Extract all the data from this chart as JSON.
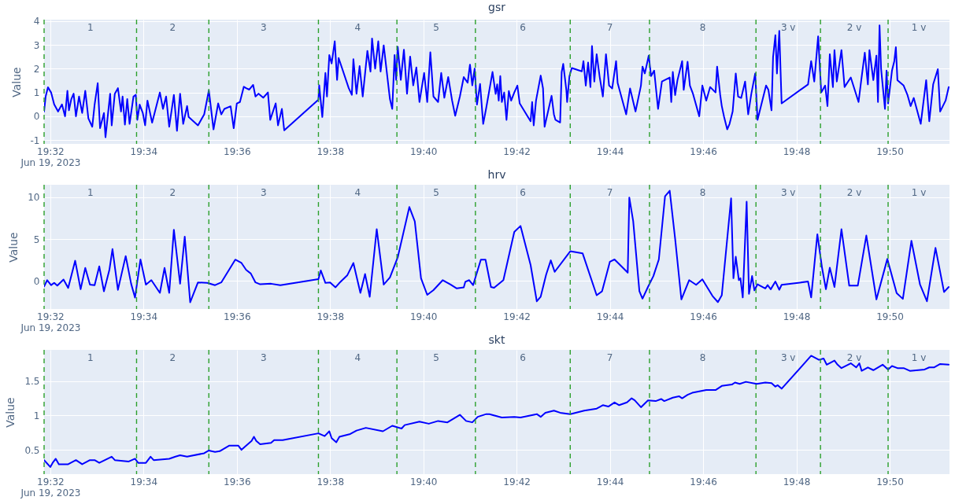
{
  "chart_data": [
    {
      "type": "line",
      "title": "gsr",
      "ylabel": "Value",
      "color": "#0000ff",
      "grid": true,
      "xlim": [
        "2023-06-19T19:31:52",
        "2023-06-19T19:51:17"
      ],
      "ylim": [
        -1.16,
        4.06
      ],
      "yticks": [
        -1,
        0,
        1,
        2,
        3,
        4
      ],
      "xticks": [
        {
          "value": "2023-06-19T19:32",
          "label": "19:32\nJun 19, 2023"
        },
        {
          "value": "2023-06-19T19:34",
          "label": "19:34"
        },
        {
          "value": "2023-06-19T19:36",
          "label": "19:36"
        },
        {
          "value": "2023-06-19T19:38",
          "label": "19:38"
        },
        {
          "value": "2023-06-19T19:40",
          "label": "19:40"
        },
        {
          "value": "2023-06-19T19:42",
          "label": "19:42"
        },
        {
          "value": "2023-06-19T19:44",
          "label": "19:44"
        },
        {
          "value": "2023-06-19T19:46",
          "label": "19:46"
        },
        {
          "value": "2023-06-19T19:48",
          "label": "19:48"
        },
        {
          "value": "2023-06-19T19:50",
          "label": "19:50"
        }
      ],
      "x": [
        "2023-06-19T19:31:52",
        "2023-06-19T19:31:54",
        "2023-06-19T19:31:57",
        "2023-06-19T19:32:01",
        "2023-06-19T19:32:05",
        "2023-06-19T19:32:10",
        "2023-06-19T19:32:15",
        "2023-06-19T19:32:19",
        "2023-06-19T19:32:22",
        "2023-06-19T19:32:24",
        "2023-06-19T19:32:27",
        "2023-06-19T19:32:30",
        "2023-06-19T19:32:33",
        "2023-06-19T19:32:37",
        "2023-06-19T19:32:41",
        "2023-06-19T19:32:45",
        "2023-06-19T19:32:49",
        "2023-06-19T19:32:54",
        "2023-06-19T19:32:57",
        "2023-06-19T19:33:01",
        "2023-06-19T19:33:04",
        "2023-06-19T19:33:09",
        "2023-06-19T19:33:11",
        "2023-06-19T19:33:17",
        "2023-06-19T19:33:19",
        "2023-06-19T19:33:23",
        "2023-06-19T19:33:27",
        "2023-06-19T19:33:31",
        "2023-06-19T19:33:33",
        "2023-06-19T19:33:36",
        "2023-06-19T19:33:39",
        "2023-06-19T19:33:42",
        "2023-06-19T19:33:47",
        "2023-06-19T19:33:50",
        "2023-06-19T19:33:52",
        "2023-06-19T19:33:55",
        "2023-06-19T19:33:59",
        "2023-06-19T19:34:02",
        "2023-06-19T19:34:05",
        "2023-06-19T19:34:11",
        "2023-06-19T19:34:21",
        "2023-06-19T19:34:25",
        "2023-06-19T19:34:29",
        "2023-06-19T19:34:33",
        "2023-06-19T19:34:39",
        "2023-06-19T19:34:43",
        "2023-06-19T19:34:47",
        "2023-06-19T19:34:51",
        "2023-06-19T19:34:56",
        "2023-06-19T19:34:58",
        "2023-06-19T19:35:10",
        "2023-06-19T19:35:18",
        "2023-06-19T19:35:24",
        "2023-06-19T19:35:30",
        "2023-06-19T19:35:36",
        "2023-06-19T19:35:40",
        "2023-06-19T19:35:44",
        "2023-06-19T19:35:52",
        "2023-06-19T19:35:56",
        "2023-06-19T19:36:00",
        "2023-06-19T19:36:04",
        "2023-06-19T19:36:09",
        "2023-06-19T19:36:12",
        "2023-06-19T19:36:16",
        "2023-06-19T19:36:21",
        "2023-06-19T19:36:24",
        "2023-06-19T19:36:28",
        "2023-06-19T19:36:34",
        "2023-06-19T19:36:40",
        "2023-06-19T19:36:43",
        "2023-06-19T19:36:50",
        "2023-06-19T19:36:53",
        "2023-06-19T19:36:58",
        "2023-06-19T19:37:01",
        "2023-06-19T19:37:45",
        "2023-06-19T19:37:46",
        "2023-06-19T19:37:50",
        "2023-06-19T19:37:54",
        "2023-06-19T19:37:56",
        "2023-06-19T19:37:59",
        "2023-06-19T19:38:02",
        "2023-06-19T19:38:06",
        "2023-06-19T19:38:09",
        "2023-06-19T19:38:11",
        "2023-06-19T19:38:24",
        "2023-06-19T19:38:28",
        "2023-06-19T19:38:30",
        "2023-06-19T19:38:34",
        "2023-06-19T19:38:38",
        "2023-06-19T19:38:42",
        "2023-06-19T19:38:48",
        "2023-06-19T19:38:52",
        "2023-06-19T19:38:54",
        "2023-06-19T19:38:58",
        "2023-06-19T19:39:02",
        "2023-06-19T19:39:05",
        "2023-06-19T19:39:09",
        "2023-06-19T19:39:17",
        "2023-06-19T19:39:20",
        "2023-06-19T19:39:23",
        "2023-06-19T19:39:25",
        "2023-06-19T19:39:27",
        "2023-06-19T19:39:31",
        "2023-06-19T19:39:35",
        "2023-06-19T19:39:39",
        "2023-06-19T19:39:43",
        "2023-06-19T19:39:47",
        "2023-06-19T19:39:51",
        "2023-06-19T19:39:55",
        "2023-06-19T19:40:01",
        "2023-06-19T19:40:05",
        "2023-06-19T19:40:09",
        "2023-06-19T19:40:13",
        "2023-06-19T19:40:19",
        "2023-06-19T19:40:23",
        "2023-06-19T19:40:27",
        "2023-06-19T19:40:32",
        "2023-06-19T19:40:37",
        "2023-06-19T19:40:41",
        "2023-06-19T19:40:47",
        "2023-06-19T19:40:52",
        "2023-06-19T19:40:57",
        "2023-06-19T19:41:00",
        "2023-06-19T19:41:03",
        "2023-06-19T19:41:06",
        "2023-06-19T19:41:09",
        "2023-06-19T19:41:13",
        "2023-06-19T19:41:17",
        "2023-06-19T19:41:21",
        "2023-06-19T19:41:29",
        "2023-06-19T19:41:33",
        "2023-06-19T19:41:35",
        "2023-06-19T19:41:37",
        "2023-06-19T19:41:39",
        "2023-06-19T19:41:41",
        "2023-06-19T19:41:44",
        "2023-06-19T19:41:47",
        "2023-06-19T19:41:50",
        "2023-06-19T19:41:53",
        "2023-06-19T19:41:57",
        "2023-06-19T19:42:01",
        "2023-06-19T19:42:04",
        "2023-06-19T19:42:18",
        "2023-06-19T19:42:20",
        "2023-06-19T19:42:22",
        "2023-06-19T19:42:25",
        "2023-06-19T19:42:31",
        "2023-06-19T19:42:34",
        "2023-06-19T19:42:36",
        "2023-06-19T19:42:45",
        "2023-06-19T19:42:48",
        "2023-06-19T19:42:50",
        "2023-06-19T19:42:56",
        "2023-06-19T19:42:58",
        "2023-06-19T19:43:00",
        "2023-06-19T19:43:04",
        "2023-06-19T19:43:05",
        "2023-06-19T19:43:08",
        "2023-06-19T19:43:11",
        "2023-06-19T19:43:24",
        "2023-06-19T19:43:26",
        "2023-06-19T19:43:29",
        "2023-06-19T19:43:32",
        "2023-06-19T19:43:35",
        "2023-06-19T19:43:37",
        "2023-06-19T19:43:40",
        "2023-06-19T19:43:43",
        "2023-06-19T19:43:47",
        "2023-06-19T19:43:51",
        "2023-06-19T19:43:55",
        "2023-06-19T19:43:59",
        "2023-06-19T19:44:03",
        "2023-06-19T19:44:08",
        "2023-06-19T19:44:10",
        "2023-06-19T19:44:21",
        "2023-06-19T19:44:26",
        "2023-06-19T19:44:33",
        "2023-06-19T19:44:40",
        "2023-06-19T19:44:42",
        "2023-06-19T19:44:45",
        "2023-06-19T19:44:50",
        "2023-06-19T19:44:53",
        "2023-06-19T19:44:57",
        "2023-06-19T19:45:02",
        "2023-06-19T19:45:07",
        "2023-06-19T19:45:17",
        "2023-06-19T19:45:19",
        "2023-06-19T19:45:21",
        "2023-06-19T19:45:24",
        "2023-06-19T19:45:27",
        "2023-06-19T19:45:33",
        "2023-06-19T19:45:35",
        "2023-06-19T19:45:40",
        "2023-06-19T19:45:43",
        "2023-06-19T19:45:47",
        "2023-06-19T19:45:55",
        "2023-06-19T19:45:59",
        "2023-06-19T19:46:04",
        "2023-06-19T19:46:09",
        "2023-06-19T19:46:16",
        "2023-06-19T19:46:18",
        "2023-06-19T19:46:22",
        "2023-06-19T19:46:24",
        "2023-06-19T19:46:27",
        "2023-06-19T19:46:31",
        "2023-06-19T19:46:34",
        "2023-06-19T19:46:38",
        "2023-06-19T19:46:42",
        "2023-06-19T19:46:45",
        "2023-06-19T19:46:49",
        "2023-06-19T19:46:54",
        "2023-06-19T19:46:58",
        "2023-06-19T19:47:02",
        "2023-06-19T19:47:07",
        "2023-06-19T19:47:10",
        "2023-06-19T19:47:21",
        "2023-06-19T19:47:24",
        "2023-06-19T19:47:28",
        "2023-06-19T19:47:30",
        "2023-06-19T19:47:33",
        "2023-06-19T19:47:35",
        "2023-06-19T19:47:38",
        "2023-06-19T19:47:41",
        "2023-06-19T19:48:15",
        "2023-06-19T19:48:19",
        "2023-06-19T19:48:23",
        "2023-06-19T19:48:28",
        "2023-06-19T19:48:32",
        "2023-06-19T19:48:37",
        "2023-06-19T19:48:40",
        "2023-06-19T19:48:43",
        "2023-06-19T19:48:47",
        "2023-06-19T19:48:49",
        "2023-06-19T19:48:52",
        "2023-06-19T19:48:58",
        "2023-06-19T19:49:02",
        "2023-06-19T19:49:10",
        "2023-06-19T19:49:20",
        "2023-06-19T19:49:23",
        "2023-06-19T19:49:28",
        "2023-06-19T19:49:32",
        "2023-06-19T19:49:34",
        "2023-06-19T19:49:39",
        "2023-06-19T19:49:43",
        "2023-06-19T19:49:45",
        "2023-06-19T19:49:47",
        "2023-06-19T19:49:49",
        "2023-06-19T19:49:54",
        "2023-06-19T19:49:56",
        "2023-06-19T19:49:58",
        "2023-06-19T19:50:03",
        "2023-06-19T19:50:06",
        "2023-06-19T19:50:08",
        "2023-06-19T19:50:10",
        "2023-06-19T19:50:18",
        "2023-06-19T19:50:23",
        "2023-06-19T19:50:27",
        "2023-06-19T19:50:31",
        "2023-06-19T19:50:40",
        "2023-06-19T19:50:47",
        "2023-06-19T19:50:51",
        "2023-06-19T19:50:56",
        "2023-06-19T19:51:02",
        "2023-06-19T19:51:05",
        "2023-06-19T19:51:12",
        "2023-06-19T19:51:16"
      ],
      "values": [
        0.2,
        0.83,
        1.22,
        1.0,
        0.5,
        0.2,
        0.5,
        0.0,
        1.07,
        0.25,
        0.72,
        0.95,
        0.0,
        0.83,
        0.14,
        1.07,
        -0.09,
        -0.44,
        0.49,
        1.39,
        -0.5,
        0.14,
        -0.88,
        0.95,
        -0.38,
        0.95,
        1.18,
        0.2,
        0.83,
        -0.35,
        0.72,
        -0.32,
        0.83,
        0.9,
        -0.15,
        0.49,
        0.14,
        -0.38,
        0.66,
        -0.27,
        1.0,
        0.31,
        0.83,
        -0.44,
        0.9,
        -0.61,
        0.95,
        -0.32,
        0.43,
        -0.03,
        -0.38,
        0.08,
        1.09,
        -0.55,
        0.54,
        0.08,
        0.31,
        0.42,
        -0.5,
        0.54,
        0.6,
        1.24,
        1.18,
        1.12,
        1.32,
        0.83,
        0.95,
        0.78,
        1.0,
        -0.15,
        0.54,
        -0.38,
        0.31,
        -0.59,
        0.7,
        1.3,
        -0.03,
        1.82,
        0.83,
        2.57,
        2.22,
        3.15,
        1.53,
        2.45,
        1.18,
        0.9,
        2.4,
        0.95,
        2.11,
        0.83,
        2.75,
        1.88,
        3.27,
        2.0,
        3.15,
        1.88,
        2.98,
        0.72,
        0.31,
        2.57,
        1.53,
        2.92,
        1.53,
        2.8,
        0.95,
        2.51,
        1.3,
        2.05,
        0.6,
        1.82,
        0.6,
        2.69,
        0.83,
        0.6,
        1.82,
        0.78,
        1.65,
        0.66,
        0.02,
        0.83,
        1.65,
        1.41,
        2.17,
        1.3,
        2.0,
        0.49,
        1.36,
        -0.32,
        0.37,
        1.86,
        0.94,
        1.34,
        0.66,
        1.69,
        0.6,
        1.0,
        -0.15,
        1.06,
        0.66,
        1.0,
        1.29,
        0.54,
        -0.21,
        0.6,
        -0.38,
        0.66,
        1.71,
        1.17,
        -0.44,
        0.86,
        0.08,
        -0.15,
        -0.26,
        1.86,
        2.2,
        1.11,
        0.6,
        1.69,
        2.03,
        1.89,
        2.32,
        1.29,
        2.26,
        1.23,
        2.95,
        1.46,
        2.61,
        1.63,
        0.83,
        2.61,
        1.29,
        1.17,
        2.32,
        1.4,
        0.08,
        1.17,
        0.2,
        1.29,
        2.09,
        1.8,
        2.55,
        1.69,
        1.92,
        0.31,
        1.46,
        1.63,
        0.6,
        1.86,
        0.89,
        1.52,
        2.32,
        1.11,
        2.29,
        1.29,
        0.94,
        0.0,
        1.29,
        0.66,
        1.23,
        1.0,
        2.09,
        0.89,
        0.43,
        -0.03,
        -0.55,
        -0.32,
        0.2,
        1.8,
        0.83,
        0.77,
        1.46,
        0.08,
        0.94,
        1.8,
        -0.15,
        1.29,
        1.11,
        0.25,
        2.49,
        3.41,
        1.8,
        3.59,
        0.54,
        1.34,
        2.32,
        1.46,
        3.36,
        1.0,
        1.29,
        0.43,
        2.61,
        1.23,
        2.78,
        1.46,
        2.78,
        1.23,
        1.63,
        0.6,
        1.4,
        2.67,
        1.34,
        2.78,
        1.52,
        2.55,
        0.6,
        3.82,
        1.98,
        0.31,
        1.92,
        0.54,
        1.92,
        2.32,
        2.9,
        1.52,
        1.29,
        0.89,
        0.43,
        0.77,
        -0.32,
        1.52,
        -0.21,
        1.34,
        1.98,
        0.2,
        0.66,
        1.23
      ],
      "ref_lines": [
        {
          "axis": "x",
          "value": "2023-06-19T19:31:52",
          "color": "#2ca02c",
          "line_style": "dashed"
        },
        {
          "axis": "x",
          "value": "2023-06-19T19:33:51",
          "color": "#2ca02c",
          "line_style": "dashed"
        },
        {
          "axis": "x",
          "value": "2023-06-19T19:35:24",
          "color": "#2ca02c",
          "line_style": "dashed"
        },
        {
          "axis": "x",
          "value": "2023-06-19T19:37:45",
          "color": "#2ca02c",
          "line_style": "dashed"
        },
        {
          "axis": "x",
          "value": "2023-06-19T19:39:26",
          "color": "#2ca02c",
          "line_style": "dashed"
        },
        {
          "axis": "x",
          "value": "2023-06-19T19:41:07",
          "color": "#2ca02c",
          "line_style": "dashed"
        },
        {
          "axis": "x",
          "value": "2023-06-19T19:43:09",
          "color": "#2ca02c",
          "line_style": "dashed"
        },
        {
          "axis": "x",
          "value": "2023-06-19T19:44:51",
          "color": "#2ca02c",
          "line_style": "dashed"
        },
        {
          "axis": "x",
          "value": "2023-06-19T19:47:08",
          "color": "#2ca02c",
          "line_style": "dashed"
        },
        {
          "axis": "x",
          "value": "2023-06-19T19:48:31",
          "color": "#2ca02c",
          "line_style": "dashed"
        },
        {
          "axis": "x",
          "value": "2023-06-19T19:49:58",
          "color": "#2ca02c",
          "line_style": "dashed"
        }
      ],
      "annotations": [
        "1",
        "2",
        "3",
        "4",
        "5",
        "6",
        "7",
        "8",
        "3 v",
        "2 v",
        "1 v"
      ]
    },
    {
      "type": "line",
      "title": "hrv",
      "ylabel": "Value",
      "color": "#0000ff",
      "grid": true,
      "xlim": [
        "2023-06-19T19:31:52",
        "2023-06-19T19:51:17"
      ],
      "ylim": [
        -3.35,
        11.5
      ],
      "yticks": [
        0,
        5,
        10
      ],
      "xticks": [
        {
          "value": "2023-06-19T19:32",
          "label": "19:32\nJun 19, 2023"
        },
        {
          "value": "2023-06-19T19:34",
          "label": "19:34"
        },
        {
          "value": "2023-06-19T19:36",
          "label": "19:36"
        },
        {
          "value": "2023-06-19T19:38",
          "label": "19:38"
        },
        {
          "value": "2023-06-19T19:40",
          "label": "19:40"
        },
        {
          "value": "2023-06-19T19:42",
          "label": "19:42"
        },
        {
          "value": "2023-06-19T19:44",
          "label": "19:44"
        },
        {
          "value": "2023-06-19T19:46",
          "label": "19:46"
        },
        {
          "value": "2023-06-19T19:48",
          "label": "19:48"
        },
        {
          "value": "2023-06-19T19:50",
          "label": "19:50"
        }
      ],
      "x": [
        "2023-06-19T19:31:52",
        "2023-06-19T19:31:56",
        "2023-06-19T19:32:01",
        "2023-06-19T19:32:05",
        "2023-06-19T19:32:09",
        "2023-06-19T19:32:17",
        "2023-06-19T19:32:23",
        "2023-06-19T19:32:32",
        "2023-06-19T19:32:39",
        "2023-06-19T19:32:45",
        "2023-06-19T19:32:51",
        "2023-06-19T19:32:57",
        "2023-06-19T19:33:03",
        "2023-06-19T19:33:09",
        "2023-06-19T19:33:16",
        "2023-06-19T19:33:20",
        "2023-06-19T19:33:27",
        "2023-06-19T19:33:37",
        "2023-06-19T19:33:44",
        "2023-06-19T19:33:49",
        "2023-06-19T19:33:56",
        "2023-06-19T19:34:03",
        "2023-06-19T19:34:10",
        "2023-06-19T19:34:21",
        "2023-06-19T19:34:27",
        "2023-06-19T19:34:33",
        "2023-06-19T19:34:39",
        "2023-06-19T19:34:47",
        "2023-06-19T19:34:53",
        "2023-06-19T19:35:00",
        "2023-06-19T19:35:10",
        "2023-06-19T19:35:22",
        "2023-06-19T19:35:32",
        "2023-06-19T19:35:40",
        "2023-06-19T19:35:58",
        "2023-06-19T19:36:06",
        "2023-06-19T19:36:12",
        "2023-06-19T19:36:18",
        "2023-06-19T19:36:24",
        "2023-06-19T19:36:30",
        "2023-06-19T19:36:44",
        "2023-06-19T19:36:56",
        "2023-06-19T19:37:45",
        "2023-06-19T19:37:48",
        "2023-06-19T19:37:54",
        "2023-06-19T19:38:00",
        "2023-06-19T19:38:07",
        "2023-06-19T19:38:12",
        "2023-06-19T19:38:22",
        "2023-06-19T19:38:30",
        "2023-06-19T19:38:39",
        "2023-06-19T19:38:45",
        "2023-06-19T19:38:51",
        "2023-06-19T19:39:00",
        "2023-06-19T19:39:09",
        "2023-06-19T19:39:17",
        "2023-06-19T19:39:27",
        "2023-06-19T19:39:42",
        "2023-06-19T19:39:49",
        "2023-06-19T19:39:57",
        "2023-06-19T19:40:05",
        "2023-06-19T19:40:13",
        "2023-06-19T19:40:25",
        "2023-06-19T19:40:35",
        "2023-06-19T19:40:43",
        "2023-06-19T19:40:52",
        "2023-06-19T19:40:54",
        "2023-06-19T19:40:59",
        "2023-06-19T19:41:04",
        "2023-06-19T19:41:14",
        "2023-06-19T19:41:20",
        "2023-06-19T19:41:27",
        "2023-06-19T19:41:31",
        "2023-06-19T19:41:43",
        "2023-06-19T19:41:57",
        "2023-06-19T19:42:05",
        "2023-06-19T19:42:18",
        "2023-06-19T19:42:26",
        "2023-06-19T19:42:31",
        "2023-06-19T19:42:38",
        "2023-06-19T19:42:44",
        "2023-06-19T19:42:49",
        "2023-06-19T19:43:09",
        "2023-06-19T19:43:25",
        "2023-06-19T19:43:43",
        "2023-06-19T19:43:50",
        "2023-06-19T19:44:00",
        "2023-06-19T19:44:06",
        "2023-06-19T19:44:23",
        "2023-06-19T19:44:25",
        "2023-06-19T19:44:30",
        "2023-06-19T19:44:38",
        "2023-06-19T19:44:42",
        "2023-06-19T19:44:49",
        "2023-06-19T19:44:56",
        "2023-06-19T19:45:03",
        "2023-06-19T19:45:11",
        "2023-06-19T19:45:17",
        "2023-06-19T19:45:24",
        "2023-06-19T19:45:32",
        "2023-06-19T19:45:42",
        "2023-06-19T19:45:51",
        "2023-06-19T19:45:59",
        "2023-06-19T19:46:12",
        "2023-06-19T19:46:19",
        "2023-06-19T19:46:24",
        "2023-06-19T19:46:36",
        "2023-06-19T19:46:39",
        "2023-06-19T19:46:42",
        "2023-06-19T19:46:46",
        "2023-06-19T19:46:48",
        "2023-06-19T19:46:51",
        "2023-06-19T19:46:56",
        "2023-06-19T19:46:59",
        "2023-06-19T19:47:03",
        "2023-06-19T19:47:06",
        "2023-06-19T19:47:10",
        "2023-06-19T19:47:20",
        "2023-06-19T19:47:23",
        "2023-06-19T19:47:27",
        "2023-06-19T19:47:33",
        "2023-06-19T19:47:38",
        "2023-06-19T19:47:41",
        "2023-06-19T19:48:15",
        "2023-06-19T19:48:19",
        "2023-06-19T19:48:27",
        "2023-06-19T19:48:33",
        "2023-06-19T19:48:38",
        "2023-06-19T19:48:43",
        "2023-06-19T19:48:49",
        "2023-06-19T19:48:58",
        "2023-06-19T19:49:08",
        "2023-06-19T19:49:19",
        "2023-06-19T19:49:30",
        "2023-06-19T19:49:43",
        "2023-06-19T19:49:57",
        "2023-06-19T19:50:09",
        "2023-06-19T19:50:17",
        "2023-06-19T19:50:28",
        "2023-06-19T19:50:39",
        "2023-06-19T19:50:48",
        "2023-06-19T19:50:59",
        "2023-06-19T19:51:10",
        "2023-06-19T19:51:16"
      ],
      "values": [
        -0.66,
        0.1,
        -0.5,
        -0.23,
        -0.56,
        0.17,
        -0.83,
        2.42,
        -0.99,
        1.56,
        -0.43,
        -0.5,
        1.75,
        -1.23,
        1.32,
        3.81,
        -1.06,
        2.98,
        -0.33,
        -1.99,
        2.58,
        -0.43,
        0.1,
        -1.42,
        1.56,
        -1.42,
        6.13,
        -0.33,
        5.3,
        -2.55,
        -0.17,
        -0.23,
        -0.5,
        -0.17,
        2.55,
        2.15,
        1.32,
        0.89,
        -0.17,
        -0.4,
        -0.33,
        -0.5,
        0.23,
        1.26,
        -0.23,
        -0.17,
        -0.76,
        -0.23,
        0.66,
        2.15,
        -1.42,
        0.83,
        -1.89,
        6.19,
        -0.43,
        0.43,
        2.81,
        8.84,
        7.12,
        0.33,
        -1.66,
        -1.09,
        0.1,
        -0.43,
        -0.89,
        -0.76,
        -0.1,
        0.1,
        -0.5,
        2.55,
        2.55,
        -0.72,
        -0.82,
        0.1,
        5.86,
        6.58,
        1.91,
        -2.43,
        -1.88,
        0.76,
        2.47,
        1.09,
        3.55,
        3.29,
        -1.71,
        -1.22,
        2.3,
        2.57,
        0.99,
        9.97,
        7.17,
        -1.22,
        -2.11,
        -0.72,
        0.59,
        2.57,
        10.13,
        10.79,
        5.03,
        -2.2,
        0.1,
        -0.46,
        0.2,
        -1.78,
        -2.53,
        -1.71,
        9.87,
        0.33,
        2.89,
        0.1,
        0.33,
        -1.97,
        9.47,
        -1.55,
        0.59,
        -1.12,
        -0.39,
        -0.89,
        -0.49,
        -0.99,
        -0.07,
        -1.05,
        -0.46,
        -0.07,
        -1.97,
        5.59,
        1.58,
        -0.99,
        1.58,
        -0.72,
        6.18,
        -0.56,
        -0.56,
        5.43,
        -2.2,
        2.63,
        -1.45,
        -2.14,
        4.8,
        -0.39,
        -2.43,
        3.95,
        -1.32,
        -0.72
      ],
      "ref_lines": [
        {
          "axis": "x",
          "value": "2023-06-19T19:31:52",
          "color": "#2ca02c",
          "line_style": "dashed"
        },
        {
          "axis": "x",
          "value": "2023-06-19T19:33:51",
          "color": "#2ca02c",
          "line_style": "dashed"
        },
        {
          "axis": "x",
          "value": "2023-06-19T19:35:24",
          "color": "#2ca02c",
          "line_style": "dashed"
        },
        {
          "axis": "x",
          "value": "2023-06-19T19:37:45",
          "color": "#2ca02c",
          "line_style": "dashed"
        },
        {
          "axis": "x",
          "value": "2023-06-19T19:39:26",
          "color": "#2ca02c",
          "line_style": "dashed"
        },
        {
          "axis": "x",
          "value": "2023-06-19T19:41:07",
          "color": "#2ca02c",
          "line_style": "dashed"
        },
        {
          "axis": "x",
          "value": "2023-06-19T19:43:09",
          "color": "#2ca02c",
          "line_style": "dashed"
        },
        {
          "axis": "x",
          "value": "2023-06-19T19:44:51",
          "color": "#2ca02c",
          "line_style": "dashed"
        },
        {
          "axis": "x",
          "value": "2023-06-19T19:47:08",
          "color": "#2ca02c",
          "line_style": "dashed"
        },
        {
          "axis": "x",
          "value": "2023-06-19T19:48:31",
          "color": "#2ca02c",
          "line_style": "dashed"
        },
        {
          "axis": "x",
          "value": "2023-06-19T19:49:58",
          "color": "#2ca02c",
          "line_style": "dashed"
        }
      ],
      "annotations": [
        "1",
        "2",
        "3",
        "4",
        "5",
        "6",
        "7",
        "8",
        "3 v",
        "2 v",
        "1 v"
      ]
    },
    {
      "type": "line",
      "title": "skt",
      "ylabel": "Value",
      "color": "#0000ff",
      "grid": true,
      "xlim": [
        "2023-06-19T19:31:52",
        "2023-06-19T19:51:17"
      ],
      "ylim": [
        0.146,
        1.955
      ],
      "yticks": [
        0.5,
        1,
        1.5
      ],
      "xticks": [
        {
          "value": "2023-06-19T19:32",
          "label": "19:32\nJun 19, 2023"
        },
        {
          "value": "2023-06-19T19:34",
          "label": "19:34"
        },
        {
          "value": "2023-06-19T19:36",
          "label": "19:36"
        },
        {
          "value": "2023-06-19T19:38",
          "label": "19:38"
        },
        {
          "value": "2023-06-19T19:40",
          "label": "19:40"
        },
        {
          "value": "2023-06-19T19:42",
          "label": "19:42"
        },
        {
          "value": "2023-06-19T19:44",
          "label": "19:44"
        },
        {
          "value": "2023-06-19T19:46",
          "label": "19:46"
        },
        {
          "value": "2023-06-19T19:48",
          "label": "19:48"
        },
        {
          "value": "2023-06-19T19:50",
          "label": "19:50"
        }
      ],
      "x": [
        "2023-06-19T19:31:52",
        "2023-06-19T19:32:00",
        "2023-06-19T19:32:03",
        "2023-06-19T19:32:07",
        "2023-06-19T19:32:11",
        "2023-06-19T19:32:23",
        "2023-06-19T19:32:33",
        "2023-06-19T19:32:41",
        "2023-06-19T19:32:51",
        "2023-06-19T19:32:57",
        "2023-06-19T19:33:03",
        "2023-06-19T19:33:19",
        "2023-06-19T19:33:23",
        "2023-06-19T19:33:41",
        "2023-06-19T19:33:49",
        "2023-06-19T19:33:53",
        "2023-06-19T19:34:03",
        "2023-06-19T19:34:09",
        "2023-06-19T19:34:13",
        "2023-06-19T19:34:33",
        "2023-06-19T19:34:41",
        "2023-06-19T19:34:47",
        "2023-06-19T19:34:56",
        "2023-06-19T19:35:18",
        "2023-06-19T19:35:24",
        "2023-06-19T19:35:32",
        "2023-06-19T19:35:38",
        "2023-06-19T19:35:50",
        "2023-06-19T19:36:02",
        "2023-06-19T19:36:06",
        "2023-06-19T19:36:10",
        "2023-06-19T19:36:19",
        "2023-06-19T19:36:22",
        "2023-06-19T19:36:25",
        "2023-06-19T19:36:30",
        "2023-06-19T19:36:44",
        "2023-06-19T19:36:48",
        "2023-06-19T19:36:59",
        "2023-06-19T19:37:45",
        "2023-06-19T19:37:53",
        "2023-06-19T19:37:59",
        "2023-06-19T19:38:02",
        "2023-06-19T19:38:08",
        "2023-06-19T19:38:12",
        "2023-06-19T19:38:26",
        "2023-06-19T19:38:34",
        "2023-06-19T19:38:46",
        "2023-06-19T19:39:08",
        "2023-06-19T19:39:20",
        "2023-06-19T19:39:32",
        "2023-06-19T19:39:36",
        "2023-06-19T19:39:55",
        "2023-06-19T19:40:07",
        "2023-06-19T19:40:19",
        "2023-06-19T19:40:31",
        "2023-06-19T19:40:47",
        "2023-06-19T19:40:55",
        "2023-06-19T19:41:03",
        "2023-06-19T19:41:10",
        "2023-06-19T19:41:21",
        "2023-06-19T19:41:25",
        "2023-06-19T19:41:41",
        "2023-06-19T19:41:57",
        "2023-06-19T19:42:05",
        "2023-06-19T19:42:26",
        "2023-06-19T19:42:31",
        "2023-06-19T19:42:37",
        "2023-06-19T19:42:48",
        "2023-06-19T19:42:56",
        "2023-06-19T19:43:09",
        "2023-06-19T19:43:27",
        "2023-06-19T19:43:43",
        "2023-06-19T19:43:51",
        "2023-06-19T19:43:58",
        "2023-06-19T19:44:06",
        "2023-06-19T19:44:12",
        "2023-06-19T19:44:22",
        "2023-06-19T19:44:28",
        "2023-06-19T19:44:32",
        "2023-06-19T19:44:40",
        "2023-06-19T19:44:49",
        "2023-06-19T19:44:59",
        "2023-06-19T19:45:06",
        "2023-06-19T19:45:10",
        "2023-06-19T19:45:21",
        "2023-06-19T19:45:29",
        "2023-06-19T19:45:33",
        "2023-06-19T19:45:40",
        "2023-06-19T19:45:46",
        "2023-06-19T19:46:04",
        "2023-06-19T19:46:16",
        "2023-06-19T19:46:24",
        "2023-06-19T19:46:37",
        "2023-06-19T19:46:41",
        "2023-06-19T19:46:47",
        "2023-06-19T19:46:55",
        "2023-06-19T19:47:09",
        "2023-06-19T19:47:20",
        "2023-06-19T19:47:28",
        "2023-06-19T19:47:33",
        "2023-06-19T19:47:36",
        "2023-06-19T19:47:41",
        "2023-06-19T19:48:19",
        "2023-06-19T19:48:29",
        "2023-06-19T19:48:35",
        "2023-06-19T19:48:39",
        "2023-06-19T19:48:49",
        "2023-06-19T19:48:53",
        "2023-06-19T19:48:58",
        "2023-06-19T19:49:10",
        "2023-06-19T19:49:17",
        "2023-06-19T19:49:21",
        "2023-06-19T19:49:24",
        "2023-06-19T19:49:32",
        "2023-06-19T19:49:39",
        "2023-06-19T19:49:51",
        "2023-06-19T19:49:58",
        "2023-06-19T19:50:03",
        "2023-06-19T19:50:10",
        "2023-06-19T19:50:18",
        "2023-06-19T19:50:26",
        "2023-06-19T19:50:45",
        "2023-06-19T19:50:51",
        "2023-06-19T19:50:57",
        "2023-06-19T19:51:05",
        "2023-06-19T19:51:16"
      ],
      "values": [
        0.35,
        0.25,
        0.31,
        0.37,
        0.29,
        0.29,
        0.35,
        0.29,
        0.35,
        0.35,
        0.31,
        0.4,
        0.35,
        0.33,
        0.37,
        0.31,
        0.31,
        0.4,
        0.35,
        0.37,
        0.4,
        0.42,
        0.4,
        0.45,
        0.49,
        0.47,
        0.48,
        0.56,
        0.56,
        0.5,
        0.54,
        0.63,
        0.69,
        0.63,
        0.58,
        0.6,
        0.64,
        0.64,
        0.74,
        0.7,
        0.77,
        0.67,
        0.61,
        0.69,
        0.73,
        0.78,
        0.82,
        0.77,
        0.85,
        0.81,
        0.86,
        0.91,
        0.88,
        0.92,
        0.9,
        1.01,
        0.92,
        0.9,
        0.98,
        1.02,
        1.02,
        0.97,
        0.98,
        0.97,
        1.02,
        0.98,
        1.04,
        1.07,
        1.04,
        1.02,
        1.07,
        1.1,
        1.15,
        1.13,
        1.19,
        1.15,
        1.19,
        1.25,
        1.22,
        1.12,
        1.22,
        1.21,
        1.24,
        1.21,
        1.26,
        1.28,
        1.25,
        1.3,
        1.33,
        1.37,
        1.37,
        1.43,
        1.45,
        1.48,
        1.46,
        1.49,
        1.46,
        1.48,
        1.47,
        1.42,
        1.44,
        1.39,
        1.87,
        1.81,
        1.83,
        1.74,
        1.8,
        1.74,
        1.69,
        1.76,
        1.7,
        1.76,
        1.65,
        1.7,
        1.66,
        1.74,
        1.67,
        1.72,
        1.69,
        1.69,
        1.65,
        1.67,
        1.7,
        1.7,
        1.75,
        1.74
      ],
      "ref_lines": [
        {
          "axis": "x",
          "value": "2023-06-19T19:31:52",
          "color": "#2ca02c",
          "line_style": "dashed"
        },
        {
          "axis": "x",
          "value": "2023-06-19T19:33:51",
          "color": "#2ca02c",
          "line_style": "dashed"
        },
        {
          "axis": "x",
          "value": "2023-06-19T19:35:24",
          "color": "#2ca02c",
          "line_style": "dashed"
        },
        {
          "axis": "x",
          "value": "2023-06-19T19:37:45",
          "color": "#2ca02c",
          "line_style": "dashed"
        },
        {
          "axis": "x",
          "value": "2023-06-19T19:39:26",
          "color": "#2ca02c",
          "line_style": "dashed"
        },
        {
          "axis": "x",
          "value": "2023-06-19T19:41:07",
          "color": "#2ca02c",
          "line_style": "dashed"
        },
        {
          "axis": "x",
          "value": "2023-06-19T19:43:09",
          "color": "#2ca02c",
          "line_style": "dashed"
        },
        {
          "axis": "x",
          "value": "2023-06-19T19:44:51",
          "color": "#2ca02c",
          "line_style": "dashed"
        },
        {
          "axis": "x",
          "value": "2023-06-19T19:47:08",
          "color": "#2ca02c",
          "line_style": "dashed"
        },
        {
          "axis": "x",
          "value": "2023-06-19T19:48:31",
          "color": "#2ca02c",
          "line_style": "dashed"
        },
        {
          "axis": "x",
          "value": "2023-06-19T19:49:58",
          "color": "#2ca02c",
          "line_style": "dashed"
        }
      ],
      "annotations": [
        "1",
        "2",
        "3",
        "4",
        "5",
        "6",
        "7",
        "8",
        "3 v",
        "2 v",
        "1 v"
      ]
    }
  ]
}
